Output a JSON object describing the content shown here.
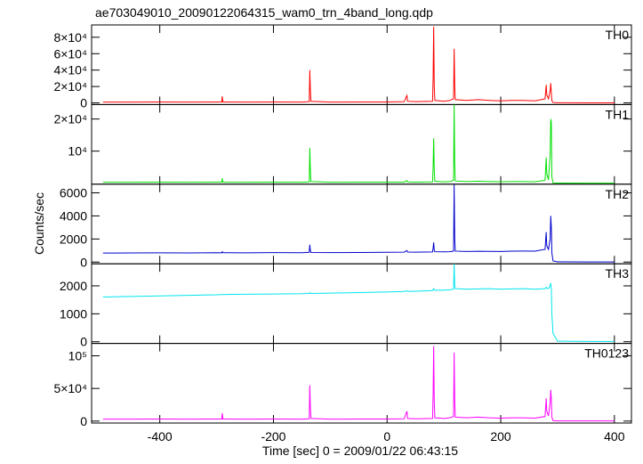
{
  "chart_data": {
    "type": "line",
    "title": "ae703049010_20090122064315_wam0_trn_4band_long.qdp",
    "xlabel": "Time [sec] 0 = 2009/01/22 06:43:15",
    "ylabel": "Counts/sec",
    "xlim": [
      -520,
      430
    ],
    "xticks": [
      -400,
      -200,
      0,
      200,
      400
    ],
    "x": [
      -500,
      -450,
      -400,
      -350,
      -300,
      -291,
      -290,
      -289,
      -250,
      -200,
      -150,
      -137,
      -136,
      -135,
      -134,
      -100,
      -50,
      0,
      30,
      35,
      36,
      50,
      80,
      81,
      82,
      83,
      84,
      100,
      110,
      117,
      118,
      119,
      120,
      140,
      160,
      180,
      200,
      220,
      240,
      260,
      278,
      280,
      281,
      284,
      287,
      288,
      289,
      290,
      292,
      300,
      350,
      400
    ],
    "panels": [
      {
        "name": "TH0",
        "color": "#ff0000",
        "ylim": [
          -2000,
          95000
        ],
        "yticks": [
          0,
          {
            "value": 20000,
            "label": "2×10⁴"
          },
          {
            "value": 40000,
            "label": "4×10⁴"
          },
          {
            "value": 60000,
            "label": "6×10⁴"
          },
          {
            "value": 80000,
            "label": "8×10⁴"
          }
        ],
        "values": [
          1000,
          1000,
          1100,
          1000,
          1100,
          1200,
          8000,
          1200,
          1000,
          1100,
          1000,
          1500,
          40000,
          15000,
          2000,
          1000,
          1100,
          1200,
          1500,
          9000,
          2000,
          1500,
          2000,
          30000,
          93000,
          20000,
          3000,
          2000,
          3000,
          5000,
          66000,
          20000,
          4000,
          3000,
          4000,
          3000,
          2500,
          3000,
          3000,
          2500,
          5000,
          22000,
          10000,
          5000,
          15000,
          24000,
          12000,
          3000,
          500,
          200,
          100,
          100
        ]
      },
      {
        "name": "TH1",
        "color": "#00e000",
        "ylim": [
          -300,
          24500
        ],
        "yticks": [
          {
            "value": 10000,
            "label": "10⁴"
          },
          {
            "value": 20000,
            "label": "2×10⁴"
          }
        ],
        "values": [
          300,
          300,
          320,
          300,
          320,
          320,
          1500,
          320,
          300,
          320,
          300,
          400,
          11000,
          4000,
          500,
          300,
          320,
          330,
          350,
          800,
          400,
          350,
          400,
          5000,
          14000,
          4000,
          600,
          400,
          500,
          900,
          24500,
          6000,
          700,
          500,
          600,
          500,
          450,
          500,
          500,
          450,
          900,
          8000,
          3000,
          1000,
          9000,
          20000,
          19000,
          2000,
          100,
          50,
          30,
          30
        ]
      },
      {
        "name": "TH2",
        "color": "#0000cc",
        "ylim": [
          -150,
          6750
        ],
        "yticks": [
          0,
          2000,
          4000,
          6000
        ],
        "values": [
          780,
          790,
          800,
          790,
          810,
          800,
          900,
          810,
          800,
          820,
          810,
          850,
          1500,
          1000,
          830,
          820,
          830,
          850,
          860,
          1000,
          870,
          860,
          880,
          1200,
          1700,
          1000,
          900,
          890,
          900,
          950,
          6700,
          2000,
          950,
          920,
          940,
          930,
          920,
          950,
          960,
          950,
          1100,
          2600,
          1400,
          1100,
          2000,
          4000,
          3000,
          800,
          100,
          20,
          10,
          10
        ]
      },
      {
        "name": "TH3",
        "color": "#00e5ee",
        "ylim": [
          -60,
          2790
        ],
        "yticks": [
          0,
          1000,
          2000
        ],
        "values": [
          1600,
          1620,
          1640,
          1660,
          1680,
          1690,
          1700,
          1690,
          1700,
          1710,
          1720,
          1730,
          1760,
          1740,
          1730,
          1740,
          1760,
          1780,
          1800,
          1820,
          1800,
          1810,
          1830,
          1860,
          1900,
          1850,
          1840,
          1850,
          1860,
          1880,
          2800,
          2000,
          1900,
          1880,
          1890,
          1900,
          1880,
          1890,
          1900,
          1880,
          1900,
          1950,
          1920,
          1900,
          2000,
          2100,
          1900,
          1000,
          300,
          20,
          10,
          10
        ]
      },
      {
        "name": "TH0123",
        "color": "#ff00ff",
        "ylim": [
          -3000,
          119000
        ],
        "yticks": [
          0,
          {
            "value": 50000,
            "label": "5×10⁴"
          },
          {
            "value": 100000,
            "label": "10⁵"
          }
        ],
        "values": [
          3000,
          3000,
          3100,
          3000,
          3100,
          3200,
          12000,
          3200,
          3000,
          3100,
          3000,
          3500,
          55000,
          20000,
          4000,
          3000,
          3100,
          3200,
          3500,
          15000,
          4000,
          3500,
          4000,
          40000,
          115000,
          30000,
          5000,
          4000,
          5000,
          7000,
          105000,
          30000,
          6000,
          5000,
          6000,
          5000,
          4500,
          5000,
          5000,
          4500,
          7000,
          35000,
          15000,
          8000,
          28000,
          48000,
          35000,
          6000,
          800,
          300,
          200,
          200
        ]
      }
    ]
  }
}
